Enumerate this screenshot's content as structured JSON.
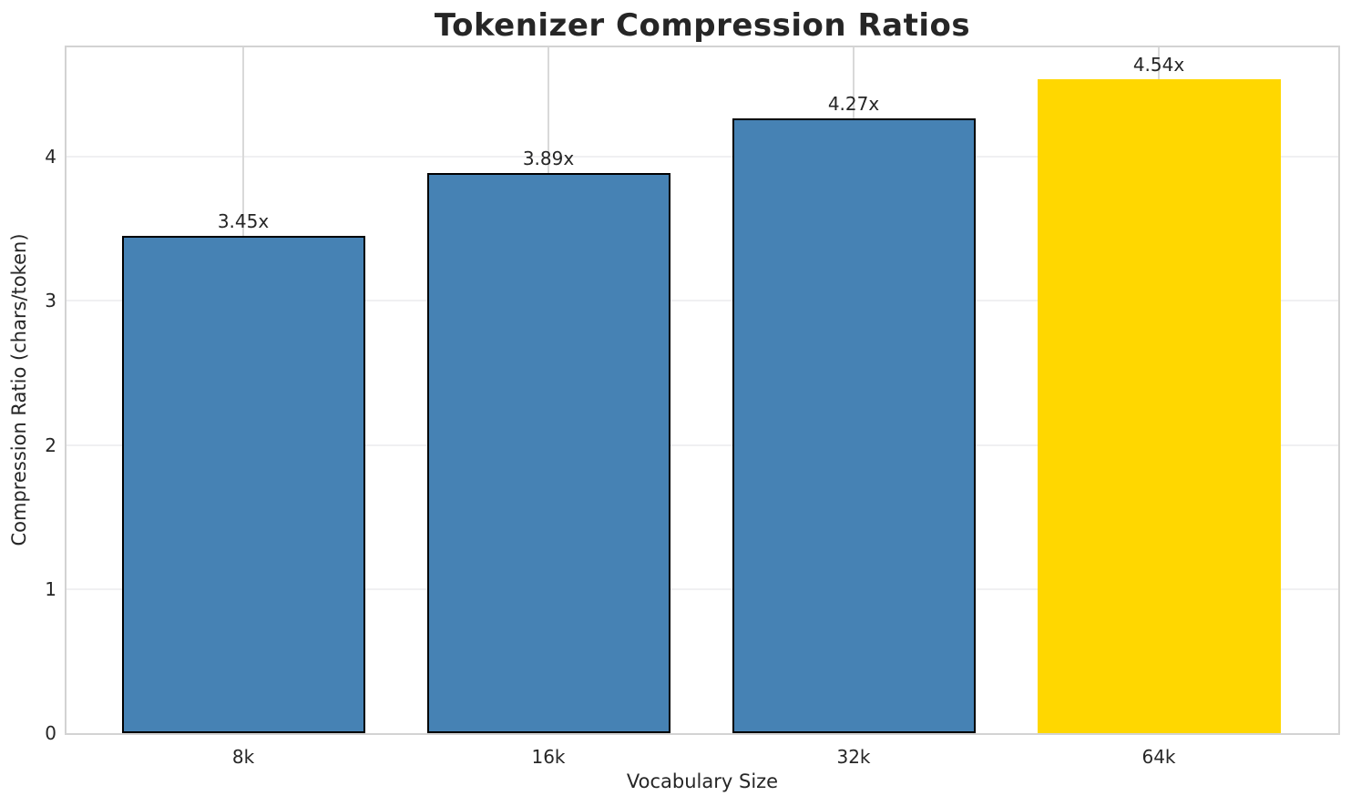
{
  "chart_data": {
    "type": "bar",
    "title": "Tokenizer Compression Ratios",
    "xlabel": "Vocabulary Size",
    "ylabel": "Compression Ratio (chars/token)",
    "categories": [
      "8k",
      "16k",
      "32k",
      "64k"
    ],
    "values": [
      3.45,
      3.89,
      4.27,
      4.54
    ],
    "bar_labels": [
      "3.45x",
      "3.89x",
      "4.27x",
      "4.54x"
    ],
    "bar_colors": [
      "#4682b4",
      "#4682b4",
      "#4682b4",
      "#ffd700"
    ],
    "bar_edge_colors": [
      "#000000",
      "#000000",
      "#000000",
      "none"
    ],
    "yticks": [
      0,
      1,
      2,
      3,
      4
    ],
    "ylim": [
      0,
      4.76
    ],
    "grid": true,
    "legend_position": "none",
    "highlighted_category": "64k"
  },
  "colors": {
    "bar_blue": "#4682b4",
    "bar_gold": "#ffd700",
    "text": "#262626",
    "spine": "#d3d3d3",
    "grid_horizontal": "#f0f0f2",
    "grid_vertical": "#d9d9d9"
  }
}
